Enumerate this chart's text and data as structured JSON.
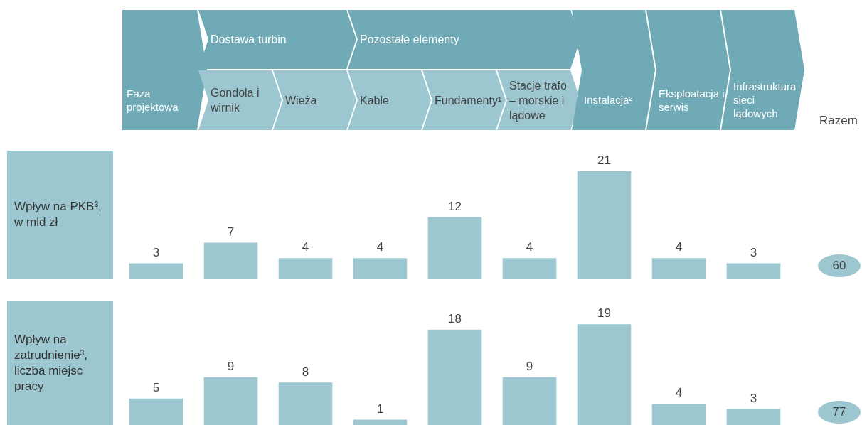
{
  "chart_data": [
    {
      "type": "bar",
      "title": "Wpływ na PKB³,",
      "subtitle": "w mld zł",
      "categories": [
        "Faza projektowa",
        "Gondola i wirnik",
        "Wieża",
        "Kable",
        "Fundamenty¹",
        "Stacje trafo – morskie i lądowe",
        "Instalacja²",
        "Eksploatacja i serwis",
        "Infrastruktura sieci lądowych"
      ],
      "values": [
        3,
        7,
        4,
        4,
        12,
        4,
        21,
        4,
        3
      ],
      "color": "#9dc7d0",
      "data_labels": true,
      "annotations": [
        "Dostawa turbin",
        "Pozostałe elementy",
        "Razem",
        "60"
      ]
    },
    {
      "type": "bar",
      "title": "Wpływ na zatrudnienie³,",
      "subtitle": "liczba miejsc pracy",
      "categories": [
        null,
        null,
        null,
        null,
        null,
        null,
        null,
        null,
        null
      ],
      "values": [
        5,
        9,
        8,
        1,
        18,
        9,
        19,
        4,
        3
      ],
      "color": "#9dc7d0",
      "data_labels": true,
      "tick_labels": false,
      "annotations": [
        "77"
      ]
    }
  ]
}
